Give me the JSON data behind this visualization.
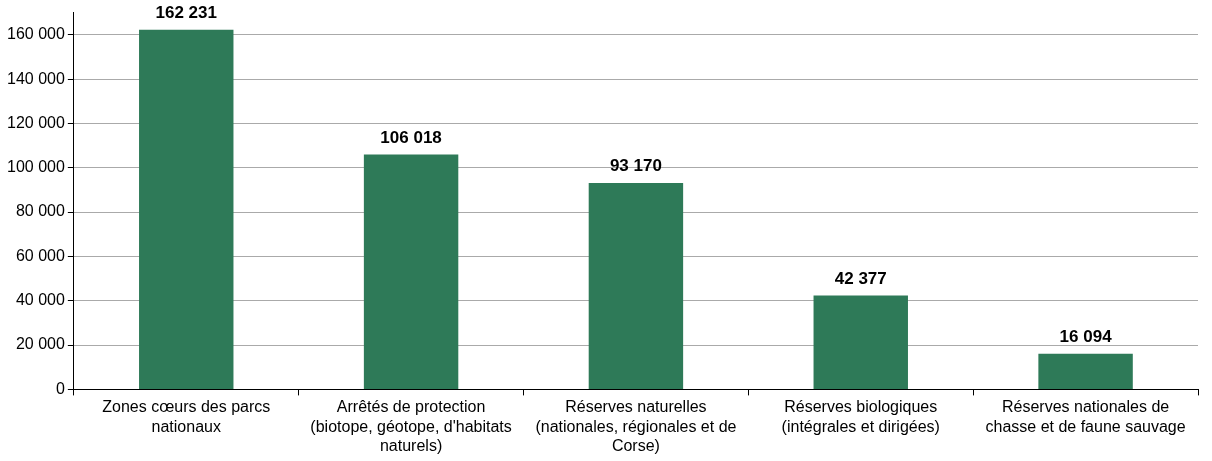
{
  "chart_data": {
    "type": "bar",
    "categories": [
      "Zones cœurs des parcs nationaux",
      "Arrêtés de protection (biotope, géotope, d'habitats naturels)",
      "Réserves naturelles (nationales, régionales et de Corse)",
      "Réserves biologiques (intégrales et dirigées)",
      "Réserves nationales de chasse et de faune sauvage"
    ],
    "values": [
      162231,
      106018,
      93170,
      42377,
      16094
    ],
    "value_labels": [
      "162 231",
      "106 018",
      "93 170",
      "42 377",
      "16 094"
    ],
    "color": "#2e7a58",
    "ylim": [
      0,
      170000
    ],
    "yticks": [
      0,
      {
        "value": 20000,
        "label": "20 000"
      },
      {
        "value": 40000,
        "label": "40 000"
      },
      {
        "value": 60000,
        "label": "60 000"
      },
      {
        "value": 80000,
        "label": "80 000"
      },
      {
        "value": 100000,
        "label": "100 000"
      },
      {
        "value": 120000,
        "label": "120 000"
      },
      {
        "value": 140000,
        "label": "140 000"
      },
      {
        "value": 160000,
        "label": "160 000"
      }
    ],
    "grid": "y",
    "legend": false
  }
}
